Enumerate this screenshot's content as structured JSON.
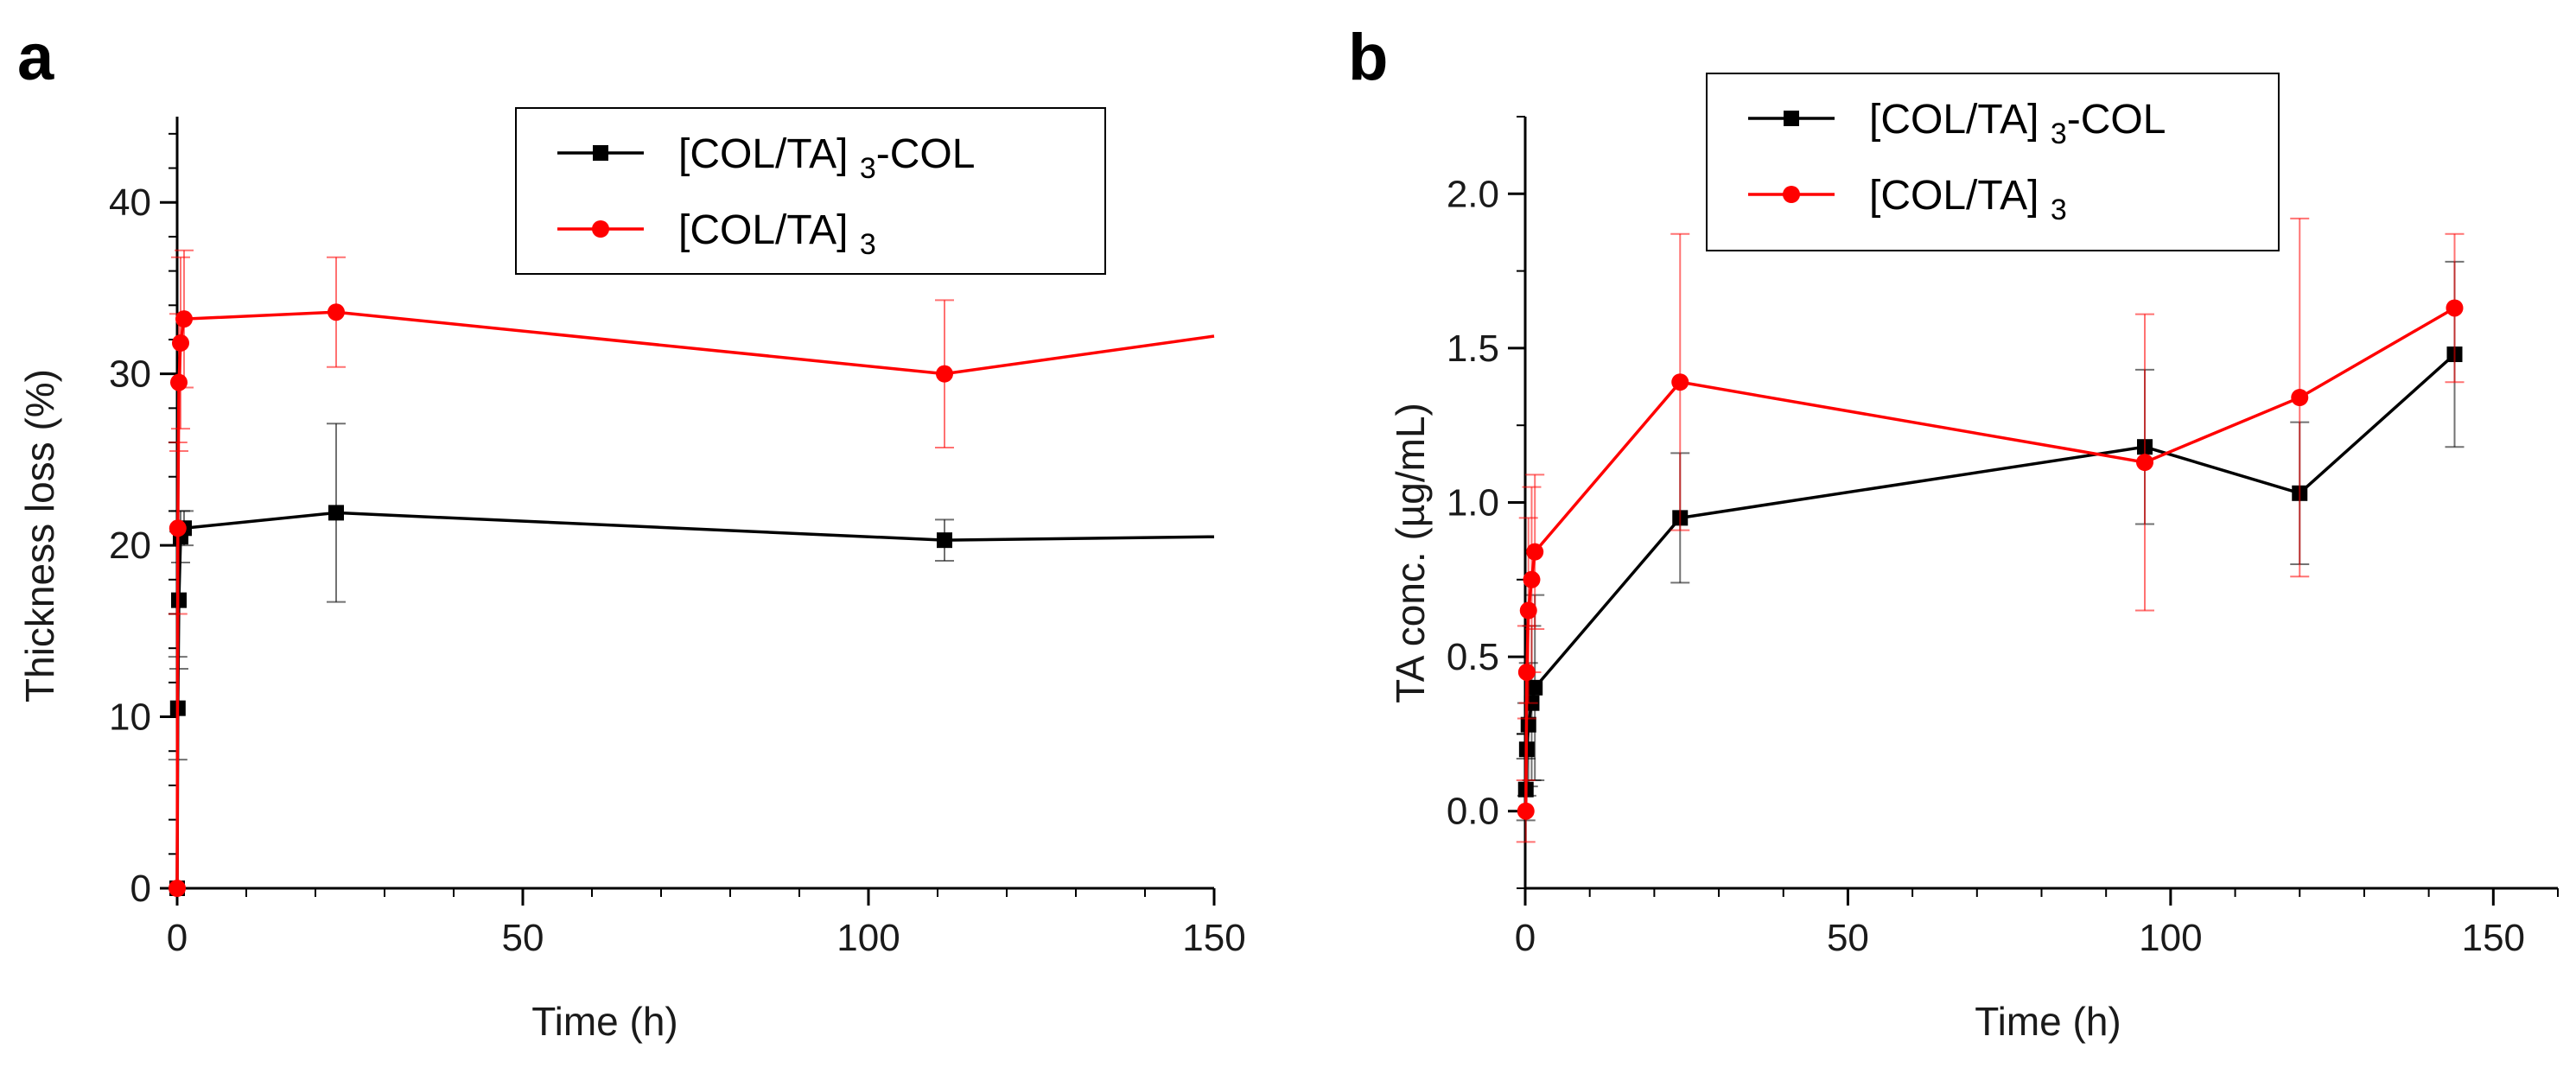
{
  "figure": {
    "panels": [
      {
        "label": "a"
      },
      {
        "label": "b"
      }
    ]
  },
  "chart_data": [
    {
      "panel": "a",
      "type": "line",
      "title": "",
      "xlabel": "Time (h)",
      "ylabel": "Thickness loss (%)",
      "xlim": [
        0,
        150
      ],
      "ylim": [
        0,
        45
      ],
      "xticks": [
        0,
        50,
        100,
        150
      ],
      "yticks": [
        0,
        10,
        20,
        30,
        40
      ],
      "xtick_labels": [
        "0",
        "50",
        "100",
        "150"
      ],
      "ytick_labels": [
        "0",
        "10",
        "20",
        "30",
        "40"
      ],
      "legend": {
        "position": "top-right",
        "entries": [
          {
            "main": "[COL/TA]",
            "sub": "3",
            "suffix": "-COL"
          },
          {
            "main": "[COL/TA]",
            "sub": "3",
            "suffix": ""
          }
        ]
      },
      "series": [
        {
          "name": "[COL/TA]3-COL",
          "color": "#000000",
          "marker": "square",
          "x": [
            0,
            0.1,
            0.25,
            0.5,
            1,
            23,
            111,
            150
          ],
          "y": [
            0,
            10.5,
            16.8,
            20.5,
            21,
            21.9,
            20.3,
            20.5
          ],
          "yerr": [
            0,
            3,
            4,
            1.5,
            1,
            5.2,
            1.2,
            null
          ]
        },
        {
          "name": "[COL/TA]3",
          "color": "#ff0000",
          "marker": "circle",
          "x": [
            0,
            0.1,
            0.25,
            0.5,
            1,
            23,
            111,
            150
          ],
          "y": [
            0,
            21,
            29.5,
            31.8,
            33.2,
            33.6,
            30,
            32.2
          ],
          "yerr": [
            0,
            5,
            4,
            5,
            4,
            3.2,
            4.3,
            null
          ]
        }
      ]
    },
    {
      "panel": "b",
      "type": "line",
      "title": "",
      "xlabel": "Time (h)",
      "ylabel": "TA conc. (µg/mL)",
      "xlim": [
        0,
        160
      ],
      "ylim": [
        -0.25,
        2.25
      ],
      "xticks": [
        0,
        50,
        100,
        150
      ],
      "yticks": [
        0,
        0.5,
        1,
        1.5,
        2
      ],
      "xtick_labels": [
        "0",
        "50",
        "100",
        "150"
      ],
      "ytick_labels": [
        "0.0",
        "0.5",
        "1.0",
        "1.5",
        "2.0"
      ],
      "legend": {
        "position": "top-left",
        "entries": [
          {
            "main": "[COL/TA]",
            "sub": "3",
            "suffix": "-COL"
          },
          {
            "main": "[COL/TA]",
            "sub": "3",
            "suffix": ""
          }
        ]
      },
      "series": [
        {
          "name": "[COL/TA]3-COL",
          "color": "#000000",
          "marker": "square",
          "x": [
            0.1,
            0.25,
            0.5,
            1,
            1.5,
            24,
            96,
            120,
            144
          ],
          "y": [
            0.07,
            0.2,
            0.28,
            0.35,
            0.4,
            0.95,
            1.18,
            1.03,
            1.48
          ],
          "yerr": [
            0.1,
            0.15,
            0.2,
            0.25,
            0.3,
            0.21,
            0.25,
            0.23,
            0.3
          ]
        },
        {
          "name": "[COL/TA]3",
          "color": "#ff0000",
          "marker": "circle",
          "x": [
            0.1,
            0.25,
            0.5,
            1,
            1.5,
            24,
            96,
            120,
            144
          ],
          "y": [
            0,
            0.45,
            0.65,
            0.75,
            0.84,
            1.39,
            1.13,
            1.34,
            1.63
          ],
          "yerr": [
            0.1,
            0.15,
            0.3,
            0.3,
            0.25,
            0.48,
            0.48,
            0.58,
            0.24
          ]
        }
      ]
    }
  ]
}
